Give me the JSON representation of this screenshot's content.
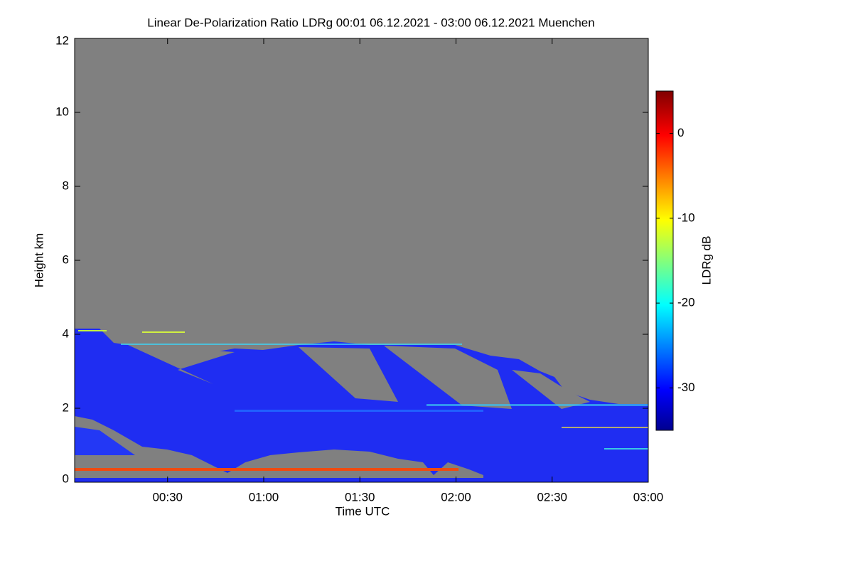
{
  "chart_data": {
    "type": "heatmap",
    "title": "Linear De-Polarization Ratio LDRg   00:01 06.12.2021 - 03:00 06.12.2021 Muenchen",
    "x_label": "Time UTC",
    "y_label": "Height km",
    "xlim": [
      1,
      180
    ],
    "xticks": [
      {
        "value": 30,
        "label": "00:30"
      },
      {
        "value": 60,
        "label": "01:00"
      },
      {
        "value": 90,
        "label": "01:30"
      },
      {
        "value": 120,
        "label": "02:00"
      },
      {
        "value": 150,
        "label": "02:30"
      },
      {
        "value": 180,
        "label": "03:00"
      }
    ],
    "ylim": [
      0,
      12
    ],
    "yticks": [
      0,
      2,
      4,
      6,
      8,
      10,
      12
    ],
    "colorbar": {
      "label": "LDRg dB",
      "colormap": "jet",
      "clim": [
        -35,
        5
      ],
      "ticks": [
        0,
        -10,
        -20,
        -30
      ]
    }
  }
}
